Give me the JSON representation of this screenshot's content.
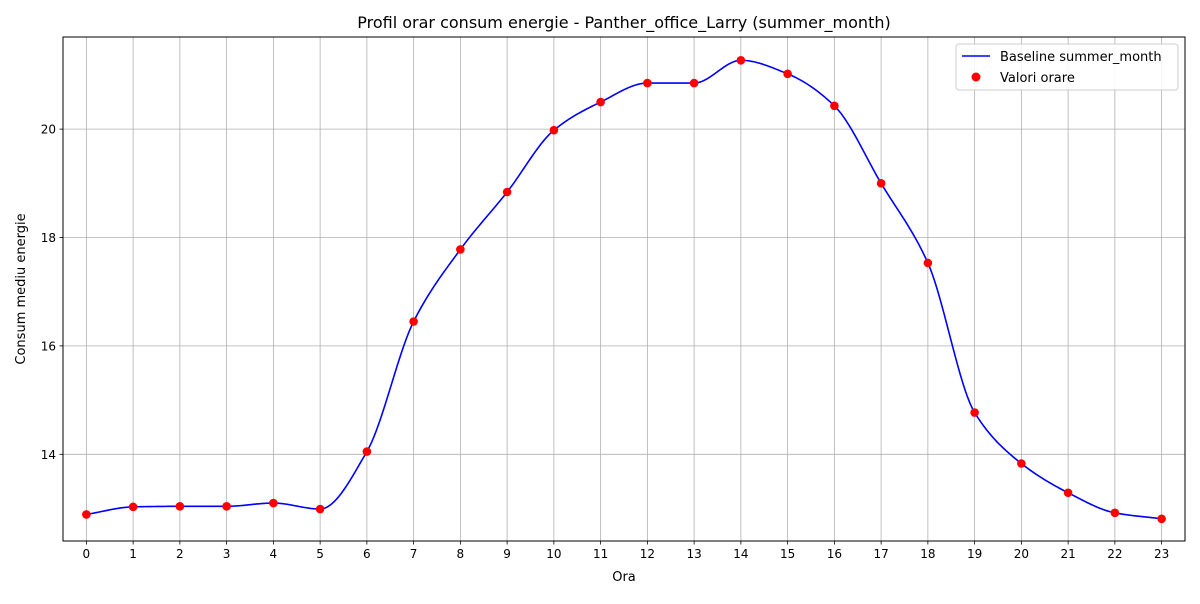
{
  "chart_data": {
    "type": "line",
    "title": "Profil orar consum energie - Panther_office_Larry (summer_month)",
    "xlabel": "Ora",
    "ylabel": "Consum mediu energie",
    "x": [
      0,
      1,
      2,
      3,
      4,
      5,
      6,
      7,
      8,
      9,
      10,
      11,
      12,
      13,
      14,
      15,
      16,
      17,
      18,
      19,
      20,
      21,
      22,
      23
    ],
    "xticks": [
      "0",
      "1",
      "2",
      "3",
      "4",
      "5",
      "6",
      "7",
      "8",
      "9",
      "10",
      "11",
      "12",
      "13",
      "14",
      "15",
      "16",
      "17",
      "18",
      "19",
      "20",
      "21",
      "22",
      "23"
    ],
    "yticks": [
      "14",
      "16",
      "18",
      "20"
    ],
    "xlim": [
      -0.5,
      23.5
    ],
    "ylim": [
      12.4,
      21.7
    ],
    "grid": true,
    "legend_position": "top-right",
    "series": [
      {
        "name": "Baseline summer_month",
        "kind": "line",
        "color": "#0000ff",
        "smooth": true,
        "values": [
          12.89,
          13.03,
          13.04,
          13.04,
          13.1,
          12.99,
          14.05,
          16.45,
          17.78,
          18.84,
          19.98,
          20.5,
          20.85,
          20.85,
          21.27,
          21.02,
          20.43,
          19.0,
          17.53,
          14.77,
          13.83,
          13.29,
          12.92,
          12.81
        ]
      },
      {
        "name": "Valori orare",
        "kind": "scatter",
        "color": "#ff0000",
        "values": [
          12.89,
          13.03,
          13.04,
          13.04,
          13.1,
          12.99,
          14.05,
          16.45,
          17.78,
          18.84,
          19.98,
          20.5,
          20.85,
          20.85,
          21.27,
          21.02,
          20.43,
          19.0,
          17.53,
          14.77,
          13.83,
          13.29,
          12.92,
          12.81
        ]
      }
    ]
  }
}
